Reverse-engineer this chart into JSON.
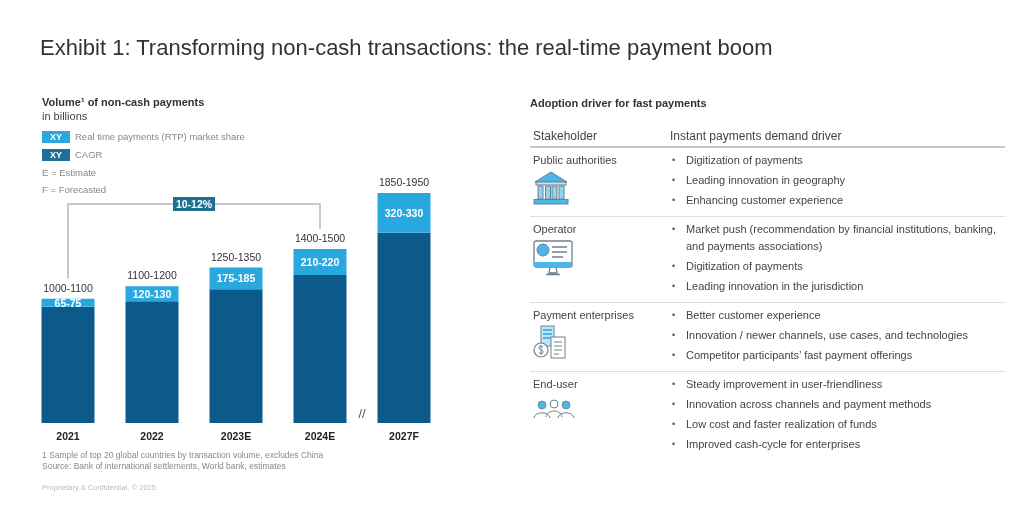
{
  "chart_data": [
    {
      "type": "bar",
      "title": "Exhibit 1: Transforming non-cash transactions: the real-time payment boom",
      "subtitle": "Volume¹ of non-cash payments",
      "ylabel": "in billions",
      "categories": [
        "2021",
        "2022",
        "2023E",
        "2024E",
        "2027F"
      ],
      "series": [
        {
          "color": "#0b5a8a",
          "values": [
            935,
            980,
            1075,
            1190,
            1530
          ]
        },
        {
          "name": "Real time payments (RTP) market share",
          "color": "#29a8e0",
          "values": [
            65,
            120,
            175,
            210,
            320
          ],
          "value_labels": [
            "65-75",
            "120-130",
            "175-185",
            "210-220",
            "320-330"
          ]
        }
      ],
      "stacked": true,
      "totals": [
        "1000-1100",
        "1100-1200",
        "1250-1350",
        "1400-1500",
        "1850-1950"
      ],
      "legend": "top left",
      "annotations": [
        "XY",
        "XY",
        "CAGR",
        "E = Estimate",
        "F = Forecasted",
        "10-12%",
        "//",
        "1 Sample of top 20 global countries by transaction volume, excludes China",
        "Source: Bank of international settlements, World bank, estimates",
        "Proprietary & Confidential. © 2025"
      ]
    },
    {
      "type": "other",
      "title": "Adoption driver for fast payments",
      "annotations": [
        "Stakeholder",
        "Instant payments demand driver",
        "Public authorities",
        "• Digitization of payments\n• Leading innovation in geography\n• Enhancing customer experience",
        "Operator",
        "• Market push (recommendation by financial institutions, banking, and payments associations)\n• Digitization of payments\n• Leading innovation in the jurisdiction",
        "Payment enterprises",
        "• Better customer experience\n• Innovation / newer channels, use cases, and technologies\n• Competitor participants’ fast payment offerings",
        "End-user",
        "• Steady improvement in user-friendliness\n• Innovation across channels and payment methods\n• Low cost and faster realization of funds\n• Improved cash-cycle for enterprises"
      ]
    }
  ]
}
